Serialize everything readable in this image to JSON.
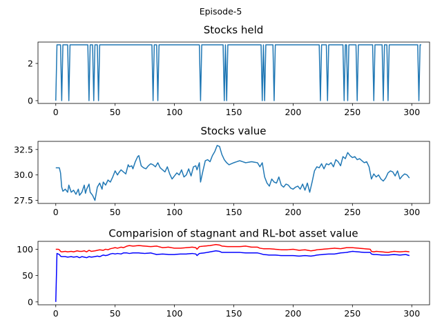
{
  "figure": {
    "suptitle": "Episode-5"
  },
  "chart_data": [
    {
      "type": "line",
      "title": "Stocks held",
      "xlabel": "",
      "ylabel": "",
      "xlim": [
        -15,
        315
      ],
      "ylim": [
        -0.15,
        3.15
      ],
      "xticks": [
        0,
        50,
        100,
        150,
        200,
        250,
        300
      ],
      "yticks": [
        0,
        2
      ],
      "grid": false,
      "series": [
        {
          "color": "#1f77b4",
          "values": [
            0,
            3,
            3,
            3,
            3,
            0,
            3,
            3,
            3,
            3,
            3,
            0,
            3,
            3,
            3,
            3,
            3,
            3,
            3,
            3,
            3,
            3,
            3,
            3,
            3,
            3,
            3,
            3,
            0,
            3,
            3,
            3,
            0,
            3,
            3,
            3,
            0,
            3,
            3,
            3,
            3,
            3,
            3,
            3,
            3,
            3,
            3,
            3,
            3,
            3,
            3,
            3,
            3,
            3,
            3,
            3,
            3,
            3,
            3,
            3,
            3,
            3,
            3,
            3,
            3,
            3,
            3,
            3,
            3,
            3,
            3,
            3,
            3,
            3,
            3,
            3,
            3,
            3,
            3,
            3,
            3,
            3,
            0,
            3,
            3,
            3,
            0,
            3,
            3,
            3,
            3,
            3,
            3,
            3,
            3,
            3,
            3,
            3,
            3,
            3,
            3,
            3,
            3,
            3,
            3,
            3,
            3,
            3,
            3,
            3,
            3,
            3,
            3,
            3,
            3,
            3,
            3,
            3,
            3,
            3,
            3,
            3,
            0,
            3,
            3,
            3,
            3,
            3,
            3,
            3,
            3,
            3,
            3,
            3,
            3,
            3,
            3,
            3,
            3,
            3,
            3,
            3,
            0,
            3,
            0,
            3,
            3,
            3,
            3,
            3,
            3,
            3,
            3,
            3,
            3,
            3,
            3,
            3,
            3,
            3,
            3,
            3,
            3,
            3,
            3,
            3,
            3,
            3,
            3,
            3,
            3,
            3,
            3,
            3,
            0,
            3,
            0,
            3,
            3,
            3,
            3,
            3,
            3,
            3,
            0,
            3,
            3,
            3,
            3,
            3,
            3,
            3,
            3,
            3,
            3,
            3,
            3,
            3,
            3,
            3,
            3,
            3,
            3,
            3,
            3,
            3,
            3,
            3,
            3,
            3,
            3,
            3,
            3,
            3,
            3,
            3,
            3,
            3,
            3,
            3,
            3,
            3,
            3,
            0,
            3,
            3,
            3,
            3,
            3,
            0,
            3,
            3,
            3,
            3,
            3,
            3,
            3,
            3,
            3,
            3,
            3,
            3,
            3,
            0,
            3,
            3,
            0,
            3,
            3,
            3,
            3,
            3,
            3,
            3,
            0,
            3,
            3,
            3,
            3,
            3,
            3,
            3,
            3,
            3,
            3,
            3,
            3,
            3,
            0,
            3,
            3,
            3,
            3,
            3,
            3,
            3,
            0,
            3,
            3,
            3,
            0,
            3,
            3,
            3,
            3,
            3,
            3,
            3,
            3,
            3,
            3,
            3,
            3,
            3,
            3,
            3,
            3,
            3,
            3,
            3,
            3,
            3,
            3,
            3,
            3,
            3,
            0,
            3,
            3
          ]
        }
      ]
    },
    {
      "type": "line",
      "title": "Stocks value",
      "xlabel": "",
      "ylabel": "",
      "xlim": [
        -15,
        315
      ],
      "ylim": [
        27.2,
        33.3
      ],
      "xticks": [
        0,
        50,
        100,
        150,
        200,
        250,
        300
      ],
      "yticks": [
        27.5,
        30.0,
        32.5
      ],
      "ytick_labels": [
        "27.5",
        "30.0",
        "32.5"
      ],
      "grid": false,
      "series": [
        {
          "color": "#1f77b4",
          "keypoints_x": [
            0,
            3,
            4,
            5,
            6,
            8,
            10,
            11,
            13,
            15,
            17,
            19,
            20,
            22,
            24,
            25,
            26,
            28,
            29,
            31,
            33,
            35,
            37,
            39,
            40,
            42,
            44,
            46,
            48,
            50,
            52,
            53,
            55,
            57,
            59,
            61,
            62,
            64,
            65,
            67,
            69,
            70,
            72,
            74,
            76,
            78,
            80,
            82,
            84,
            86,
            88,
            90,
            92,
            94,
            96,
            98,
            100,
            102,
            104,
            106,
            108,
            110,
            112,
            114,
            116,
            118,
            119,
            121,
            122,
            124,
            126,
            128,
            130,
            132,
            134,
            136,
            138,
            140,
            142,
            144,
            146,
            148,
            150,
            155,
            160,
            165,
            170,
            172,
            174,
            176,
            178,
            180,
            182,
            184,
            186,
            188,
            190,
            192,
            194,
            196,
            198,
            200,
            202,
            204,
            206,
            208,
            210,
            212,
            214,
            216,
            218,
            220,
            222,
            224,
            226,
            228,
            230,
            232,
            234,
            236,
            238,
            240,
            242,
            244,
            246,
            248,
            250,
            252,
            254,
            256,
            258,
            260,
            262,
            264,
            266,
            268,
            270,
            272,
            274,
            276,
            278,
            280,
            282,
            284,
            286,
            288,
            290,
            292,
            294,
            296,
            298
          ],
          "keypoints_y": [
            30.7,
            30.7,
            30.2,
            28.8,
            28.4,
            28.6,
            28.3,
            29.0,
            28.3,
            28.5,
            28.1,
            28.6,
            28.0,
            28.3,
            29.0,
            28.2,
            28.6,
            29.1,
            28.3,
            28.0,
            27.5,
            28.8,
            29.2,
            28.6,
            29.3,
            29.0,
            29.5,
            29.3,
            29.8,
            30.4,
            30.0,
            30.2,
            30.5,
            30.3,
            30.1,
            31.0,
            30.8,
            30.9,
            30.6,
            31.3,
            31.8,
            31.9,
            30.9,
            30.7,
            30.6,
            30.9,
            31.1,
            31.0,
            30.8,
            31.2,
            30.7,
            30.5,
            30.3,
            30.8,
            30.1,
            29.6,
            29.9,
            30.2,
            30.0,
            30.5,
            29.8,
            30.0,
            30.6,
            29.9,
            30.8,
            30.9,
            30.5,
            31.2,
            29.3,
            30.4,
            31.4,
            31.5,
            31.3,
            31.9,
            32.3,
            32.9,
            32.8,
            32.0,
            31.5,
            31.2,
            31.0,
            31.1,
            31.2,
            31.4,
            31.2,
            31.3,
            31.2,
            30.8,
            31.2,
            29.8,
            29.2,
            28.9,
            29.6,
            29.3,
            29.2,
            29.8,
            29.0,
            28.8,
            29.1,
            29.0,
            28.7,
            28.6,
            28.8,
            28.9,
            28.6,
            29.1,
            28.5,
            29.2,
            28.3,
            29.3,
            30.4,
            30.8,
            30.7,
            31.1,
            30.6,
            31.1,
            31.0,
            31.2,
            30.8,
            31.5,
            31.3,
            30.9,
            31.8,
            31.6,
            32.2,
            31.9,
            31.7,
            31.8,
            31.5,
            31.6,
            31.4,
            31.2,
            31.3,
            30.8,
            29.6,
            30.1,
            29.8,
            30.0,
            29.6,
            29.4,
            29.7,
            30.2,
            30.4,
            30.3,
            29.9,
            30.4,
            29.6,
            29.9,
            30.1,
            30.0,
            29.7
          ]
        }
      ]
    },
    {
      "type": "line",
      "title": "Comparision of stagnant and RL-bot asset value",
      "xlabel": "",
      "ylabel": "",
      "xlim": [
        -15,
        315
      ],
      "ylim": [
        -5.5,
        115
      ],
      "xticks": [
        0,
        50,
        100,
        150,
        200,
        250,
        300
      ],
      "yticks": [
        0,
        50,
        100
      ],
      "grid": false,
      "series": [
        {
          "color": "#ff0000",
          "keypoints_x": [
            0,
            2,
            3,
            4,
            5,
            8,
            10,
            13,
            15,
            18,
            20,
            22,
            24,
            26,
            28,
            30,
            33,
            35,
            37,
            40,
            42,
            44,
            46,
            48,
            50,
            52,
            55,
            57,
            60,
            62,
            65,
            70,
            75,
            80,
            85,
            90,
            95,
            100,
            105,
            110,
            115,
            118,
            119,
            121,
            125,
            130,
            135,
            138,
            140,
            145,
            150,
            155,
            160,
            165,
            170,
            172,
            175,
            180,
            185,
            190,
            195,
            200,
            205,
            210,
            215,
            218,
            220,
            225,
            230,
            235,
            240,
            245,
            250,
            255,
            260,
            265,
            266,
            268,
            270,
            275,
            280,
            285,
            290,
            295,
            298
          ],
          "keypoints_y": [
            100,
            100,
            99,
            96,
            95,
            96,
            95,
            96,
            95,
            97,
            96,
            96,
            97,
            95,
            98,
            96,
            97,
            98,
            99,
            98,
            100,
            99,
            101,
            102,
            103,
            102,
            104,
            103,
            106,
            107,
            106,
            107,
            106,
            105,
            106,
            103,
            104,
            102,
            102,
            103,
            104,
            103,
            100,
            105,
            106,
            107,
            109,
            108,
            106,
            105,
            105,
            105,
            106,
            104,
            104,
            102,
            101,
            101,
            100,
            99,
            99,
            100,
            98,
            99,
            97,
            98,
            99,
            100,
            101,
            102,
            101,
            103,
            103,
            102,
            101,
            100,
            96,
            95,
            96,
            95,
            94,
            96,
            95,
            96,
            95
          ]
        },
        {
          "color": "#0000ff",
          "keypoints_x": [
            0,
            1,
            2,
            3,
            4,
            5,
            8,
            10,
            13,
            15,
            18,
            20,
            22,
            24,
            26,
            28,
            30,
            33,
            35,
            37,
            40,
            42,
            44,
            46,
            48,
            50,
            52,
            55,
            57,
            60,
            62,
            65,
            70,
            75,
            80,
            85,
            90,
            95,
            100,
            105,
            110,
            115,
            118,
            119,
            121,
            125,
            130,
            135,
            138,
            140,
            145,
            150,
            155,
            160,
            165,
            170,
            172,
            175,
            180,
            185,
            190,
            195,
            200,
            205,
            210,
            215,
            218,
            220,
            225,
            230,
            235,
            240,
            245,
            250,
            255,
            260,
            265,
            266,
            268,
            270,
            275,
            280,
            285,
            290,
            295,
            298
          ],
          "keypoints_y": [
            0,
            92,
            91,
            90,
            87,
            86,
            86,
            85,
            86,
            85,
            86,
            84,
            86,
            85,
            84,
            86,
            85,
            86,
            87,
            86,
            89,
            88,
            89,
            91,
            92,
            91,
            92,
            91,
            93,
            93,
            92,
            93,
            93,
            92,
            93,
            90,
            91,
            90,
            90,
            91,
            91,
            92,
            91,
            88,
            92,
            93,
            95,
            97,
            96,
            94,
            94,
            94,
            94,
            93,
            93,
            93,
            92,
            90,
            89,
            89,
            88,
            88,
            88,
            87,
            88,
            87,
            88,
            89,
            90,
            91,
            91,
            93,
            94,
            96,
            95,
            94,
            94,
            91,
            90,
            90,
            89,
            89,
            90,
            89,
            90,
            88
          ]
        }
      ]
    }
  ]
}
